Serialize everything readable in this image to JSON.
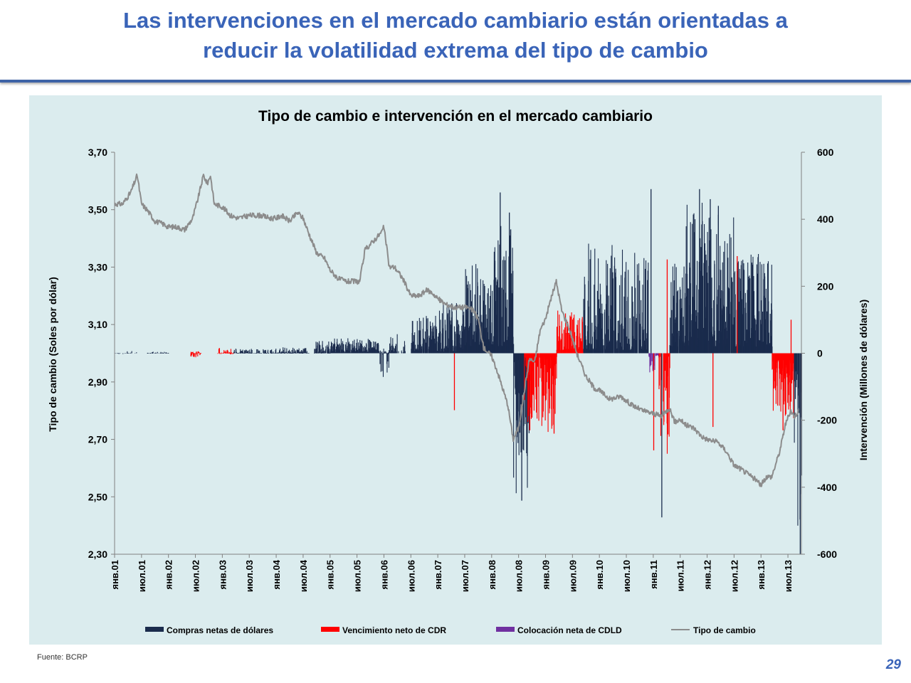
{
  "slide": {
    "title_line1": "Las intervenciones en el mercado cambiario están orientadas a",
    "title_line2": "reducir la volatilidad extrema del tipo de cambio",
    "source": "Fuente: BCRP",
    "page_number": "29"
  },
  "chart_data": {
    "type": "bar+line",
    "title": "Tipo de cambio e intervención en el mercado cambiario",
    "ylabel_left": "Tipo de cambio (Soles por dólar)",
    "ylabel_right": "Intervención (Millones de dólares)",
    "y_left": {
      "min": 2.3,
      "max": 3.7,
      "ticks": [
        "3,70",
        "3,50",
        "3,30",
        "3,10",
        "2,90",
        "2,70",
        "2,50",
        "2,30"
      ]
    },
    "y_right": {
      "min": -600,
      "max": 600,
      "ticks": [
        "600",
        "400",
        "200",
        "0",
        "-200",
        "-400",
        "-600"
      ]
    },
    "x_ticks": [
      "янв.01",
      "июл.01",
      "янв.02",
      "июл.02",
      "янв.03",
      "июл.03",
      "янв.04",
      "июл.04",
      "янв.05",
      "июл.05",
      "янв.06",
      "июл.06",
      "янв.07",
      "июл.07",
      "янв.08",
      "июл.08",
      "янв.09",
      "июл.09",
      "янв.10",
      "июл.10",
      "янв.11",
      "июл.11",
      "янв.12",
      "июл.12",
      "янв.13",
      "июл.13"
    ],
    "x_range": [
      2001.0,
      2013.75
    ],
    "legend": [
      "Compras netas de dólares",
      "Vencimiento neto de CDR",
      "Colocación neta de CDLD",
      "Tipo de cambio"
    ],
    "colors": {
      "compras": "#1a2b4c",
      "cdr": "#ff0000",
      "cdld": "#7030a0",
      "tc": "#8c8c8c"
    },
    "tipo_de_cambio": [
      [
        2001.0,
        3.52
      ],
      [
        2001.15,
        3.52
      ],
      [
        2001.3,
        3.56
      ],
      [
        2001.42,
        3.62
      ],
      [
        2001.5,
        3.52
      ],
      [
        2001.6,
        3.5
      ],
      [
        2001.75,
        3.46
      ],
      [
        2001.9,
        3.45
      ],
      [
        2002.0,
        3.44
      ],
      [
        2002.15,
        3.44
      ],
      [
        2002.3,
        3.43
      ],
      [
        2002.45,
        3.47
      ],
      [
        2002.55,
        3.54
      ],
      [
        2002.65,
        3.62
      ],
      [
        2002.72,
        3.59
      ],
      [
        2002.78,
        3.62
      ],
      [
        2002.85,
        3.52
      ],
      [
        2003.0,
        3.51
      ],
      [
        2003.15,
        3.48
      ],
      [
        2003.3,
        3.47
      ],
      [
        2003.5,
        3.48
      ],
      [
        2003.7,
        3.48
      ],
      [
        2003.9,
        3.47
      ],
      [
        2004.0,
        3.47
      ],
      [
        2004.1,
        3.48
      ],
      [
        2004.25,
        3.46
      ],
      [
        2004.4,
        3.49
      ],
      [
        2004.5,
        3.47
      ],
      [
        2004.6,
        3.42
      ],
      [
        2004.75,
        3.35
      ],
      [
        2004.9,
        3.33
      ],
      [
        2005.0,
        3.29
      ],
      [
        2005.15,
        3.26
      ],
      [
        2005.3,
        3.25
      ],
      [
        2005.45,
        3.25
      ],
      [
        2005.55,
        3.25
      ],
      [
        2005.65,
        3.36
      ],
      [
        2005.8,
        3.39
      ],
      [
        2005.95,
        3.42
      ],
      [
        2006.0,
        3.44
      ],
      [
        2006.1,
        3.3
      ],
      [
        2006.2,
        3.3
      ],
      [
        2006.35,
        3.26
      ],
      [
        2006.5,
        3.2
      ],
      [
        2006.65,
        3.2
      ],
      [
        2006.8,
        3.22
      ],
      [
        2006.9,
        3.21
      ],
      [
        2007.0,
        3.19
      ],
      [
        2007.15,
        3.17
      ],
      [
        2007.3,
        3.16
      ],
      [
        2007.45,
        3.16
      ],
      [
        2007.55,
        3.16
      ],
      [
        2007.65,
        3.15
      ],
      [
        2007.75,
        3.12
      ],
      [
        2007.85,
        3.02
      ],
      [
        2008.0,
        2.99
      ],
      [
        2008.1,
        2.94
      ],
      [
        2008.2,
        2.88
      ],
      [
        2008.3,
        2.82
      ],
      [
        2008.4,
        2.7
      ],
      [
        2008.5,
        2.74
      ],
      [
        2008.6,
        2.86
      ],
      [
        2008.7,
        2.98
      ],
      [
        2008.8,
        2.97
      ],
      [
        2008.9,
        3.08
      ],
      [
        2009.0,
        3.12
      ],
      [
        2009.1,
        3.19
      ],
      [
        2009.2,
        3.25
      ],
      [
        2009.3,
        3.15
      ],
      [
        2009.45,
        3.08
      ],
      [
        2009.6,
        2.99
      ],
      [
        2009.75,
        2.92
      ],
      [
        2009.9,
        2.88
      ],
      [
        2010.0,
        2.87
      ],
      [
        2010.2,
        2.84
      ],
      [
        2010.4,
        2.85
      ],
      [
        2010.6,
        2.82
      ],
      [
        2010.8,
        2.8
      ],
      [
        2011.0,
        2.79
      ],
      [
        2011.15,
        2.78
      ],
      [
        2011.3,
        2.81
      ],
      [
        2011.4,
        2.76
      ],
      [
        2011.5,
        2.77
      ],
      [
        2011.6,
        2.75
      ],
      [
        2011.75,
        2.74
      ],
      [
        2011.9,
        2.71
      ],
      [
        2012.0,
        2.7
      ],
      [
        2012.2,
        2.69
      ],
      [
        2012.35,
        2.66
      ],
      [
        2012.5,
        2.61
      ],
      [
        2012.6,
        2.6
      ],
      [
        2012.75,
        2.58
      ],
      [
        2012.9,
        2.56
      ],
      [
        2013.0,
        2.54
      ],
      [
        2013.1,
        2.57
      ],
      [
        2013.2,
        2.57
      ],
      [
        2013.35,
        2.66
      ],
      [
        2013.45,
        2.75
      ],
      [
        2013.55,
        2.8
      ],
      [
        2013.62,
        2.78
      ],
      [
        2013.7,
        2.8
      ]
    ]
  }
}
